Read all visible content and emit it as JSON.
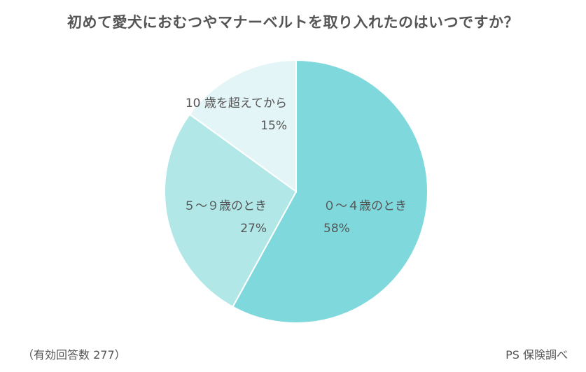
{
  "chart_data": {
    "type": "pie",
    "title": "初めて愛犬におむつやマナーベルトを取り入れたのはいつですか？",
    "slices": [
      {
        "label": "０～４歳のとき",
        "value": 58,
        "value_label": "58%",
        "color": "#7fd8dc"
      },
      {
        "label": "５～９歳のとき",
        "value": 27,
        "value_label": "27%",
        "color": "#b2e7e8"
      },
      {
        "label": "10 歳を超えてから",
        "value": 15,
        "value_label": "15%",
        "color": "#e3f5f6"
      }
    ],
    "start": "top",
    "direction": "clockwise"
  },
  "footer": {
    "sample_note": "（有効回答数 277）",
    "source": "PS 保険調べ"
  }
}
